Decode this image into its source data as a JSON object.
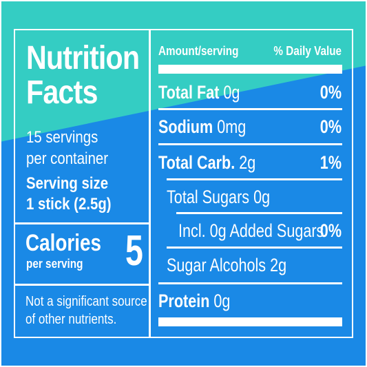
{
  "colors": {
    "teal": "#34cdc3",
    "blue": "#1a89e6",
    "white": "#ffffff"
  },
  "left": {
    "title_line1": "Nutrition",
    "title_line2": "Facts",
    "servings_line1": "15 servings",
    "servings_line2": "per container",
    "serving_size_label": "Serving size",
    "serving_size_value": "1 stick (2.5g)",
    "calories_label": "Calories",
    "per_serving": "per serving",
    "calories_value": "5",
    "footnote_line1": "Not a significant source",
    "footnote_line2": "of other nutrients."
  },
  "right": {
    "header_amount": "Amount/serving",
    "header_dv": "% Daily Value",
    "rows": [
      {
        "bold": "Total Fat",
        "amount": " 0g",
        "dv": "0%"
      },
      {
        "bold": "Sodium",
        "amount": " 0mg",
        "dv": "0%"
      },
      {
        "bold": "Total Carb.",
        "amount": " 2g",
        "dv": "1%"
      },
      {
        "bold": "",
        "amount": "Total Sugars 0g",
        "dv": ""
      },
      {
        "bold": "",
        "amount": "Incl. 0g Added Sugars",
        "dv": "0%"
      },
      {
        "bold": "",
        "amount": "Sugar Alcohols 2g",
        "dv": ""
      },
      {
        "bold": "Protein",
        "amount": " 0g",
        "dv": ""
      }
    ]
  }
}
